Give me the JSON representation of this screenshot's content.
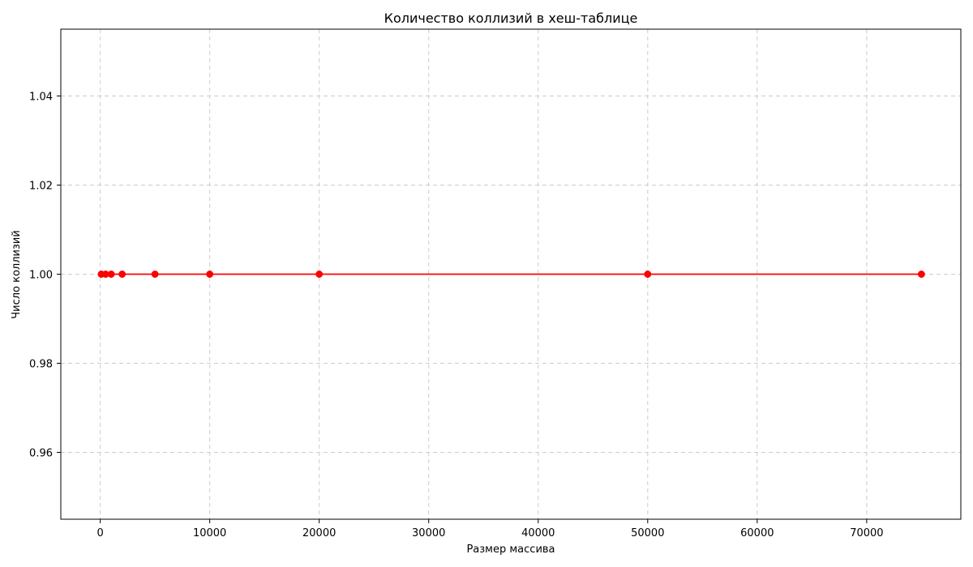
{
  "chart_data": {
    "type": "line",
    "title": "Количество коллизий в хеш-таблице",
    "xlabel": "Размер массива",
    "ylabel": "Число коллизий",
    "x": [
      100,
      500,
      1000,
      2000,
      5000,
      10000,
      20000,
      50000,
      75000
    ],
    "series": [
      {
        "values": [
          1,
          1,
          1,
          1,
          1,
          1,
          1,
          1,
          1
        ],
        "color": "#ff0000",
        "marker": "circle"
      }
    ],
    "xlim": [
      -3600,
      78600
    ],
    "ylim": [
      0.945,
      1.055
    ],
    "xticks": [
      0,
      10000,
      20000,
      30000,
      40000,
      50000,
      60000,
      70000
    ],
    "yticks": [
      0.96,
      0.98,
      1.0,
      1.02,
      1.04
    ],
    "xtick_labels": [
      "0",
      "10000",
      "20000",
      "30000",
      "40000",
      "50000",
      "60000",
      "70000"
    ],
    "ytick_labels": [
      "0.96",
      "0.98",
      "1.00",
      "1.02",
      "1.04"
    ],
    "grid": true
  }
}
